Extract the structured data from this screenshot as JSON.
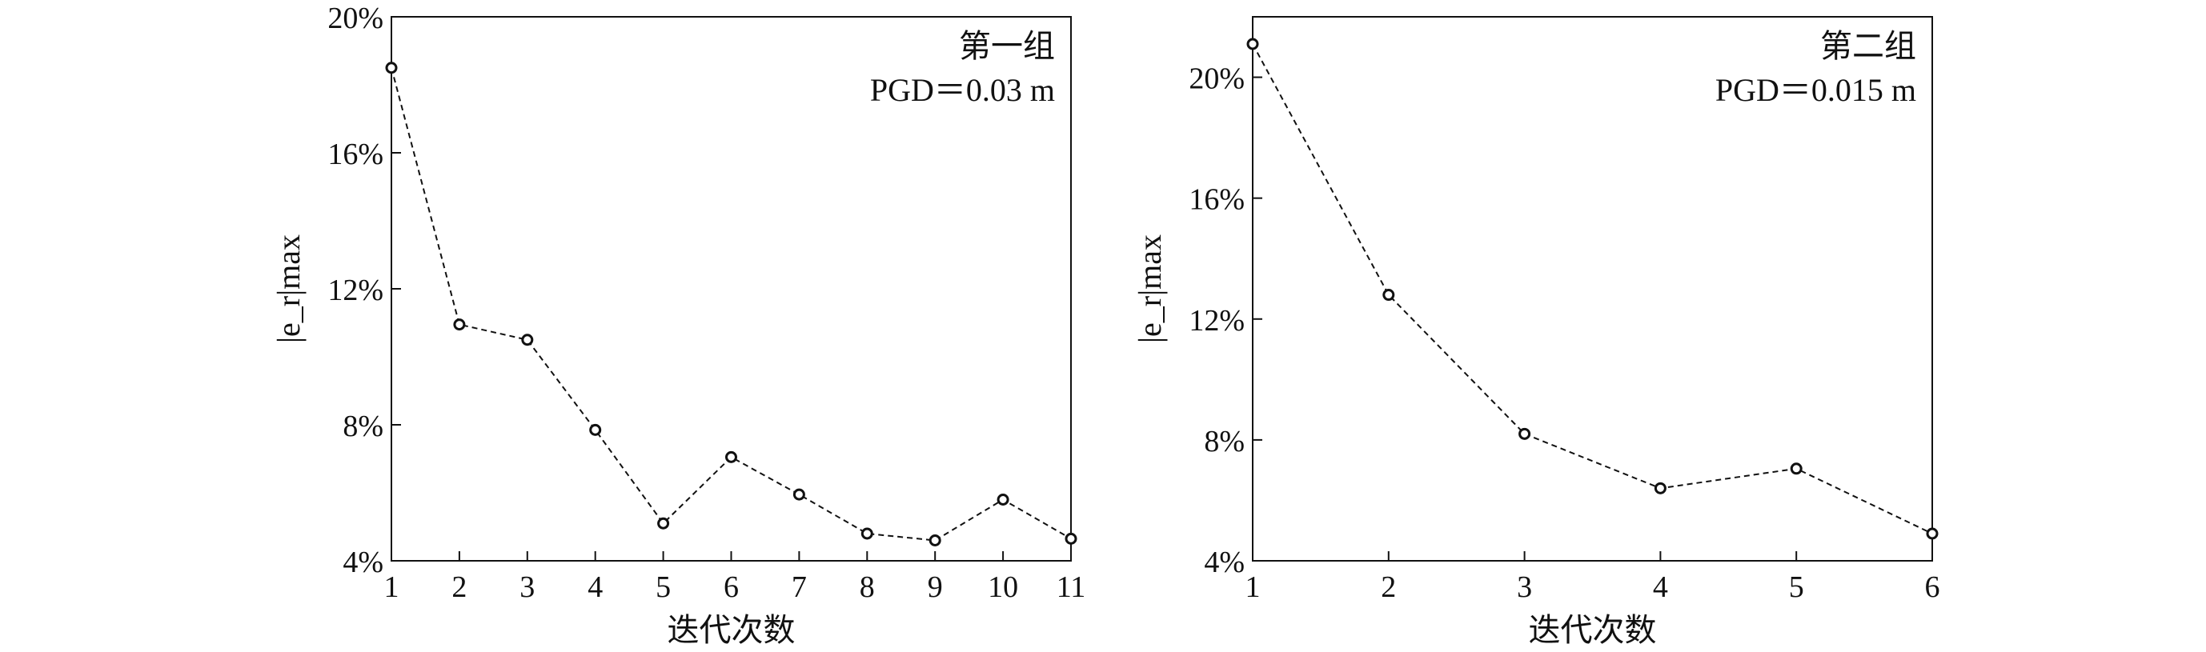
{
  "chart_data": [
    {
      "type": "line",
      "title": "",
      "annotation": [
        "第一组",
        "PGD＝0.03 m"
      ],
      "xlabel": "迭代次数",
      "ylabel": "|e_r|max",
      "ylabel_parts": {
        "bar_open": "|",
        "var": "e",
        "sub": "r",
        "bar_close": "|",
        "subscript": "max"
      },
      "x": [
        1,
        2,
        3,
        4,
        5,
        6,
        7,
        8,
        9,
        10,
        11
      ],
      "values": [
        18.5,
        10.95,
        10.5,
        7.85,
        5.1,
        7.05,
        5.95,
        4.8,
        4.6,
        5.8,
        4.65
      ],
      "xlim": [
        1,
        11
      ],
      "ylim": [
        4,
        20
      ],
      "xticks": [
        "1",
        "2",
        "3",
        "4",
        "5",
        "6",
        "7",
        "8",
        "9",
        "10",
        "11"
      ],
      "yticks": [
        4,
        8,
        12,
        16,
        20
      ],
      "ytick_labels": [
        "4%",
        "8%",
        "12%",
        "16%",
        "20%"
      ],
      "grid": false,
      "line_style": "dashed",
      "marker": "open-circle"
    },
    {
      "type": "line",
      "title": "",
      "annotation": [
        "第二组",
        "PGD＝0.015 m"
      ],
      "xlabel": "迭代次数",
      "ylabel": "|e_r|max",
      "ylabel_parts": {
        "bar_open": "|",
        "var": "e",
        "sub": "r",
        "bar_close": "|",
        "subscript": "max"
      },
      "x": [
        1,
        2,
        3,
        4,
        5,
        6
      ],
      "values": [
        21.1,
        12.8,
        8.2,
        6.4,
        7.05,
        4.9
      ],
      "xlim": [
        1,
        6
      ],
      "ylim": [
        4,
        22
      ],
      "xticks": [
        "1",
        "2",
        "3",
        "4",
        "5",
        "6"
      ],
      "yticks": [
        4,
        8,
        12,
        16,
        20
      ],
      "ytick_labels": [
        "4%",
        "8%",
        "12%",
        "16%",
        "20%"
      ],
      "grid": false,
      "line_style": "dashed",
      "marker": "open-circle"
    }
  ]
}
